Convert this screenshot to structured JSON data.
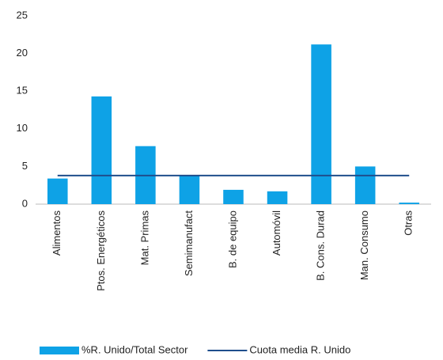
{
  "chart_data": {
    "type": "combo",
    "categories": [
      "Alimentos",
      "Ptos. Energéticos",
      "Mat. Primas",
      "Semimanufact",
      "B. de equipo",
      "Automóvil",
      "B. Cons. Durad",
      "Man. Consumo",
      "Otras"
    ],
    "series": [
      {
        "name": "%R. Unido/Total Sector",
        "type": "bar",
        "color": "#0ea2e6",
        "values": [
          3.4,
          14.3,
          7.7,
          3.8,
          1.9,
          1.7,
          21.2,
          5.0,
          0.2
        ]
      },
      {
        "name": "Cuota media R. Unido",
        "type": "line",
        "color": "#1f4e8c",
        "values": [
          3.8,
          3.8,
          3.8,
          3.8,
          3.8,
          3.8,
          3.8,
          3.8,
          3.8
        ]
      }
    ],
    "ylim": [
      0,
      25
    ],
    "yticks": [
      0,
      5,
      10,
      15,
      20,
      25
    ],
    "grid": false,
    "legend": "bottom"
  }
}
